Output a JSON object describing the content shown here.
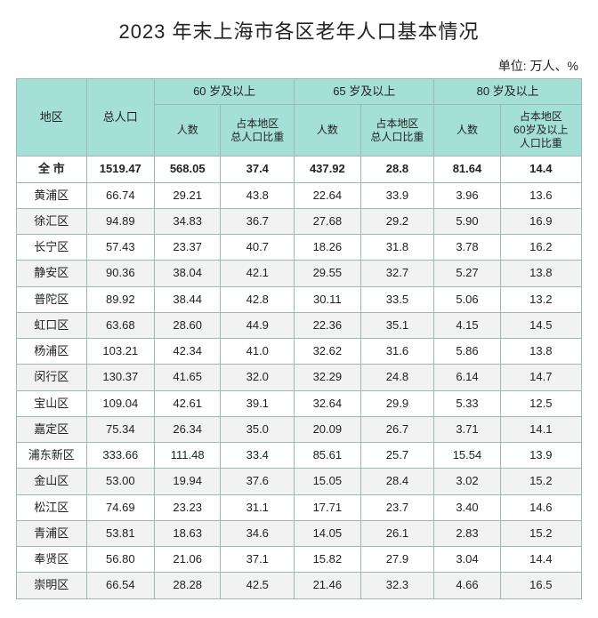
{
  "title": "2023 年末上海市各区老年人口基本情况",
  "unit": "单位: 万人、%",
  "header": {
    "region": "地区",
    "total_pop": "总人口",
    "g60": "60 岁及以上",
    "g65": "65 岁及以上",
    "g80": "80 岁及以上",
    "count": "人数",
    "pct_total": "占本地区\n总人口比重",
    "pct_60": "占本地区\n60岁及以上\n人口比重"
  },
  "total_row": {
    "region": "全 市",
    "pop": "1519.47",
    "n60": "568.05",
    "p60": "37.4",
    "n65": "437.92",
    "p65": "28.8",
    "n80": "81.64",
    "p80": "14.4"
  },
  "rows": [
    {
      "region": "黄浦区",
      "pop": "66.74",
      "n60": "29.21",
      "p60": "43.8",
      "n65": "22.64",
      "p65": "33.9",
      "n80": "3.96",
      "p80": "13.6"
    },
    {
      "region": "徐汇区",
      "pop": "94.89",
      "n60": "34.83",
      "p60": "36.7",
      "n65": "27.68",
      "p65": "29.2",
      "n80": "5.90",
      "p80": "16.9"
    },
    {
      "region": "长宁区",
      "pop": "57.43",
      "n60": "23.37",
      "p60": "40.7",
      "n65": "18.26",
      "p65": "31.8",
      "n80": "3.78",
      "p80": "16.2"
    },
    {
      "region": "静安区",
      "pop": "90.36",
      "n60": "38.04",
      "p60": "42.1",
      "n65": "29.55",
      "p65": "32.7",
      "n80": "5.27",
      "p80": "13.8"
    },
    {
      "region": "普陀区",
      "pop": "89.92",
      "n60": "38.44",
      "p60": "42.8",
      "n65": "30.11",
      "p65": "33.5",
      "n80": "5.06",
      "p80": "13.2"
    },
    {
      "region": "虹口区",
      "pop": "63.68",
      "n60": "28.60",
      "p60": "44.9",
      "n65": "22.36",
      "p65": "35.1",
      "n80": "4.15",
      "p80": "14.5"
    },
    {
      "region": "杨浦区",
      "pop": "103.21",
      "n60": "42.34",
      "p60": "41.0",
      "n65": "32.62",
      "p65": "31.6",
      "n80": "5.86",
      "p80": "13.8"
    },
    {
      "region": "闵行区",
      "pop": "130.37",
      "n60": "41.65",
      "p60": "32.0",
      "n65": "32.29",
      "p65": "24.8",
      "n80": "6.14",
      "p80": "14.7"
    },
    {
      "region": "宝山区",
      "pop": "109.04",
      "n60": "42.61",
      "p60": "39.1",
      "n65": "32.64",
      "p65": "29.9",
      "n80": "5.33",
      "p80": "12.5"
    },
    {
      "region": "嘉定区",
      "pop": "75.34",
      "n60": "26.34",
      "p60": "35.0",
      "n65": "20.09",
      "p65": "26.7",
      "n80": "3.71",
      "p80": "14.1"
    },
    {
      "region": "浦东新区",
      "pop": "333.66",
      "n60": "111.48",
      "p60": "33.4",
      "n65": "85.61",
      "p65": "25.7",
      "n80": "15.54",
      "p80": "13.9"
    },
    {
      "region": "金山区",
      "pop": "53.00",
      "n60": "19.94",
      "p60": "37.6",
      "n65": "15.05",
      "p65": "28.4",
      "n80": "3.02",
      "p80": "15.2"
    },
    {
      "region": "松江区",
      "pop": "74.69",
      "n60": "23.23",
      "p60": "31.1",
      "n65": "17.71",
      "p65": "23.7",
      "n80": "3.40",
      "p80": "14.6"
    },
    {
      "region": "青浦区",
      "pop": "53.81",
      "n60": "18.63",
      "p60": "34.6",
      "n65": "14.05",
      "p65": "26.1",
      "n80": "2.83",
      "p80": "15.2"
    },
    {
      "region": "奉贤区",
      "pop": "56.80",
      "n60": "21.06",
      "p60": "37.1",
      "n65": "15.82",
      "p65": "27.9",
      "n80": "3.04",
      "p80": "14.4"
    },
    {
      "region": "崇明区",
      "pop": "66.54",
      "n60": "28.28",
      "p60": "42.5",
      "n65": "21.46",
      "p65": "32.3",
      "n80": "4.66",
      "p80": "16.5"
    }
  ],
  "colors": {
    "header_bg": "#a4e0d6",
    "border": "#9bbab5",
    "stripe": "#f2f2f2"
  }
}
